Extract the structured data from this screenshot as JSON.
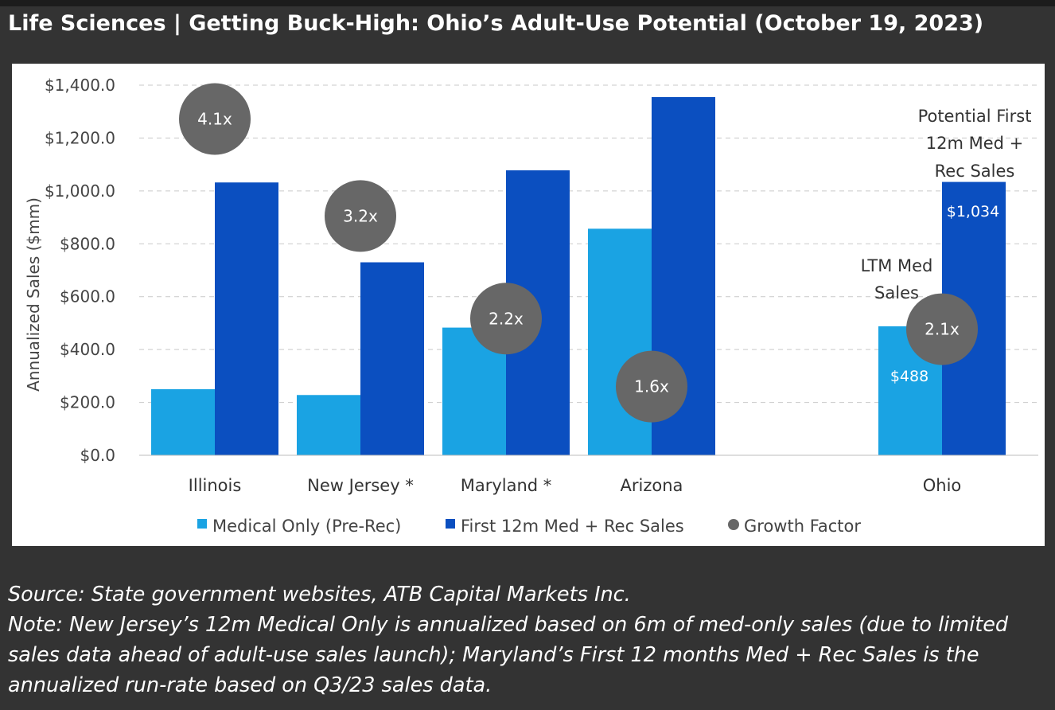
{
  "header": {
    "title": "Life Sciences | Getting Buck-High: Ohio’s Adult-Use Potential (October 19, 2023)"
  },
  "colors": {
    "medical": "#1aa3e3",
    "first12m": "#0b4fc0",
    "growth": "#676767",
    "gridline": "#c9c9c9",
    "page_bg": "#333333"
  },
  "chart_data": {
    "type": "bar",
    "ylabel": "Annualized Sales ($mm)",
    "xlabel": "",
    "ylim": [
      0,
      1400
    ],
    "yticks": [
      0,
      200,
      400,
      600,
      800,
      1000,
      1200,
      1400
    ],
    "ytick_labels": [
      "$0.0",
      "$200.0",
      "$400.0",
      "$600.0",
      "$800.0",
      "$1,000.0",
      "$1,200.0",
      "$1,400.0"
    ],
    "grid": "horizontal-dashed",
    "legend_position": "bottom",
    "categories": [
      "Illinois",
      "New Jersey *",
      "Maryland *",
      "Arizona",
      "Ohio"
    ],
    "series": [
      {
        "name": "Medical Only (Pre-Rec)",
        "values": [
          250,
          228,
          483,
          857,
          488
        ]
      },
      {
        "name": "First 12m Med + Rec Sales",
        "values": [
          1032,
          730,
          1078,
          1355,
          1034
        ]
      }
    ],
    "growth_legend": "Growth Factor",
    "growth_factors": [
      {
        "label": "4.1x",
        "y": 1272
      },
      {
        "label": "3.2x",
        "y": 905
      },
      {
        "label": "2.2x",
        "y": 517
      },
      {
        "label": "1.6x",
        "y": 260
      },
      {
        "label": "2.1x",
        "y": 477
      }
    ],
    "annotations": {
      "ohio_med_value": "$488",
      "ohio_rec_value": "$1,034",
      "ltm_label": [
        "LTM Med",
        "Sales"
      ],
      "potential_label": [
        "Potential First",
        "12m Med +",
        "Rec Sales"
      ]
    }
  },
  "notes": {
    "source": "Source: State government websites, ATB Capital Markets Inc.",
    "note": "Note: New Jersey’s 12m Medical Only is annualized based on 6m of med-only sales (due to limited sales data ahead of adult-use sales launch); Maryland’s First 12 months Med + Rec Sales is the annualized run-rate based on Q3/23 sales data."
  }
}
